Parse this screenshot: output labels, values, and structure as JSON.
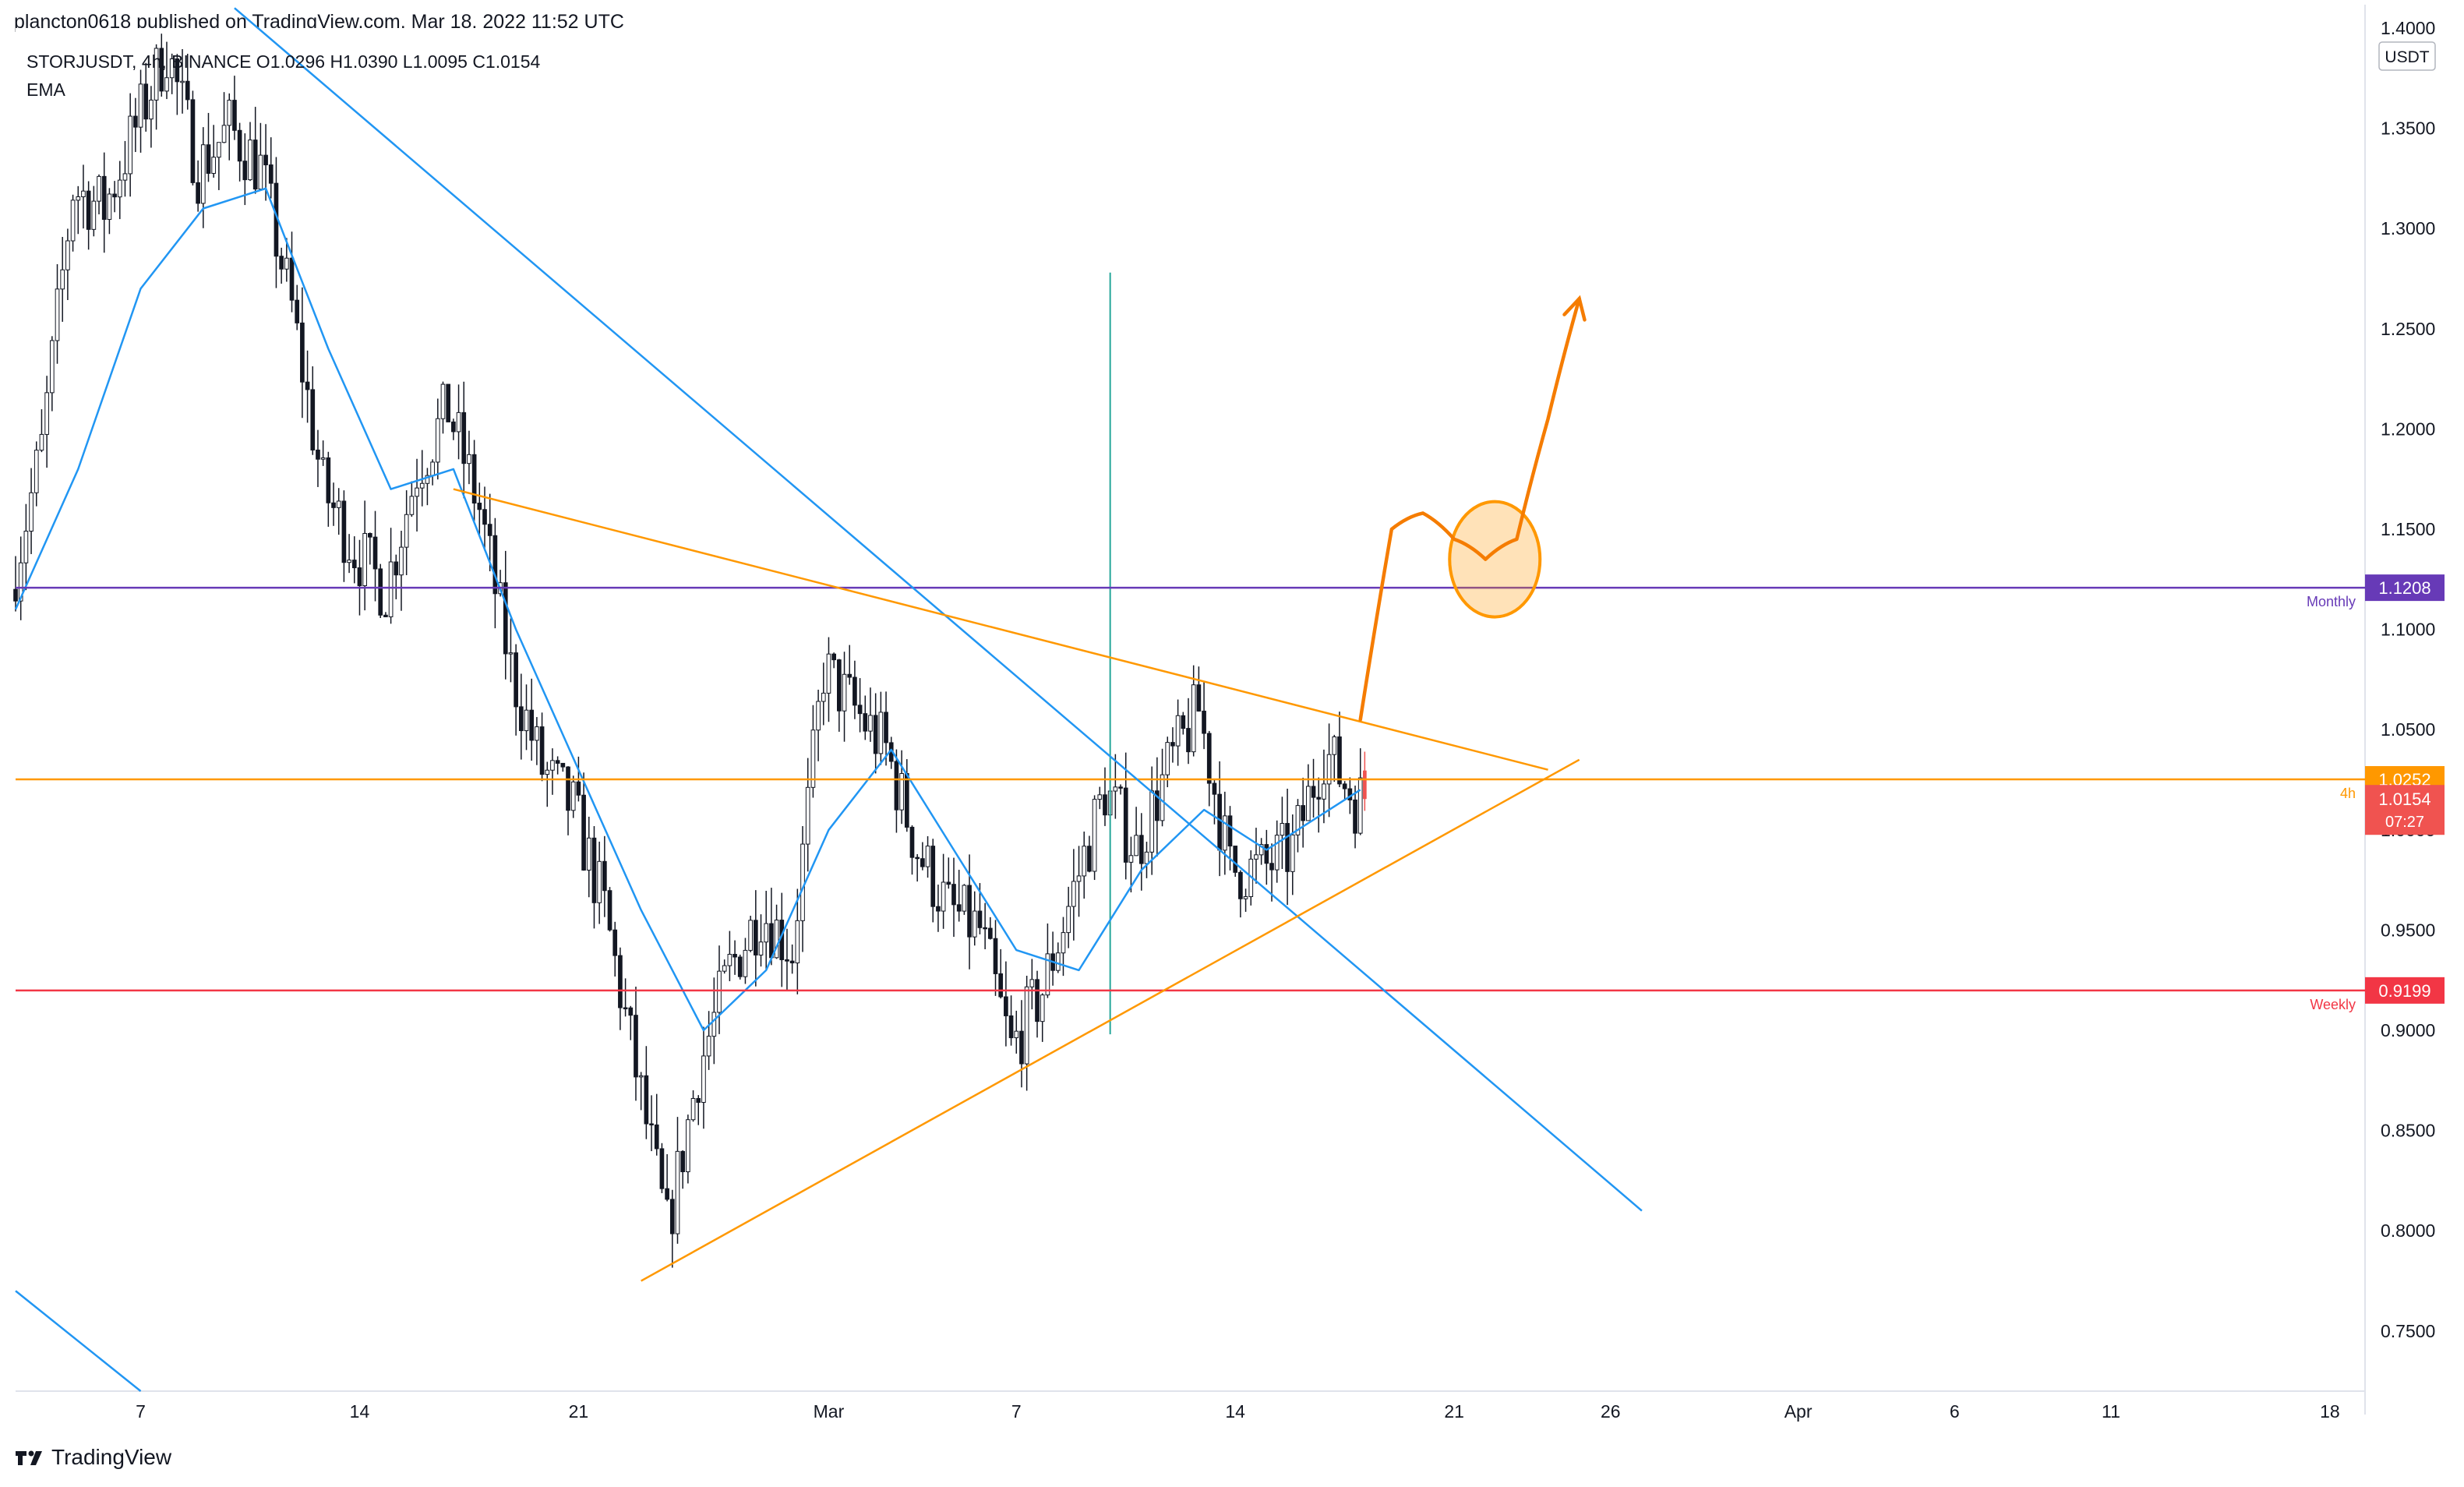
{
  "header": {
    "published": "plancton0618 published on TradingView.com, Mar 18, 2022 11:52 UTC"
  },
  "legend": {
    "symbol_line": "STORJUSDT, 4h, BINANCE  O1.0296  H1.0390  L1.0095  C1.0154",
    "indicator": "EMA"
  },
  "footer": {
    "brand": "TradingView"
  },
  "chart_data": {
    "type": "candlestick",
    "symbol": "STORJUSDT",
    "interval": "4h",
    "exchange": "BINANCE",
    "ohlc_last": {
      "open": 1.0296,
      "high": 1.039,
      "low": 1.0095,
      "close": 1.0154
    },
    "currency": "USDT",
    "y_axis": {
      "min": 0.72,
      "max": 1.4,
      "ticks": [
        "1.4000",
        "1.3500",
        "1.3000",
        "1.2500",
        "1.2000",
        "1.1500",
        "1.1000",
        "1.0500",
        "1.0000",
        "0.9500",
        "0.9000",
        "0.8500",
        "0.8000",
        "0.7500"
      ],
      "tick_values": [
        1.4,
        1.35,
        1.3,
        1.25,
        1.2,
        1.15,
        1.1,
        1.05,
        1.0,
        0.95,
        0.9,
        0.85,
        0.8,
        0.75
      ]
    },
    "x_axis": {
      "start": "2022-02-03",
      "end": "2022-04-19",
      "ticks": [
        {
          "label": "7",
          "date": "2022-02-07"
        },
        {
          "label": "14",
          "date": "2022-02-14"
        },
        {
          "label": "21",
          "date": "2022-02-21"
        },
        {
          "label": "Mar",
          "date": "2022-03-01"
        },
        {
          "label": "7",
          "date": "2022-03-07"
        },
        {
          "label": "14",
          "date": "2022-03-14"
        },
        {
          "label": "21",
          "date": "2022-03-21"
        },
        {
          "label": "26",
          "date": "2022-03-26"
        },
        {
          "label": "Apr",
          "date": "2022-04-01"
        },
        {
          "label": "6",
          "date": "2022-04-06"
        },
        {
          "label": "11",
          "date": "2022-04-11"
        },
        {
          "label": "18",
          "date": "2022-04-18"
        }
      ]
    },
    "close_series": [
      [
        "2022-02-03",
        1.12
      ],
      [
        "2022-02-04",
        1.19
      ],
      [
        "2022-02-05",
        1.32
      ],
      [
        "2022-02-06",
        1.31
      ],
      [
        "2022-02-07",
        1.35
      ],
      [
        "2022-02-08",
        1.39
      ],
      [
        "2022-02-09",
        1.33
      ],
      [
        "2022-02-10",
        1.35
      ],
      [
        "2022-02-11",
        1.33
      ],
      [
        "2022-02-12",
        1.26
      ],
      [
        "2022-02-13",
        1.17
      ],
      [
        "2022-02-14",
        1.14
      ],
      [
        "2022-02-15",
        1.12
      ],
      [
        "2022-02-16",
        1.18
      ],
      [
        "2022-02-17",
        1.21
      ],
      [
        "2022-02-18",
        1.16
      ],
      [
        "2022-02-19",
        1.08
      ],
      [
        "2022-02-20",
        1.03
      ],
      [
        "2022-02-21",
        1.01
      ],
      [
        "2022-02-22",
        0.96
      ],
      [
        "2022-02-23",
        0.88
      ],
      [
        "2022-02-24",
        0.8
      ],
      [
        "2022-02-25",
        0.88
      ],
      [
        "2022-02-26",
        0.93
      ],
      [
        "2022-02-27",
        0.96
      ],
      [
        "2022-02-28",
        0.94
      ],
      [
        "2022-03-01",
        1.08
      ],
      [
        "2022-03-02",
        1.06
      ],
      [
        "2022-03-03",
        1.04
      ],
      [
        "2022-03-04",
        0.99
      ],
      [
        "2022-03-05",
        0.96
      ],
      [
        "2022-03-06",
        0.95
      ],
      [
        "2022-03-07",
        0.89
      ],
      [
        "2022-03-08",
        0.92
      ],
      [
        "2022-03-09",
        0.97
      ],
      [
        "2022-03-10",
        1.02
      ],
      [
        "2022-03-11",
        0.99
      ],
      [
        "2022-03-12",
        1.03
      ],
      [
        "2022-03-13",
        1.06
      ],
      [
        "2022-03-14",
        0.98
      ],
      [
        "2022-03-15",
        0.98
      ],
      [
        "2022-03-16",
        0.99
      ],
      [
        "2022-03-17",
        1.04
      ],
      [
        "2022-03-18",
        1.0154
      ]
    ],
    "ema_series": [
      [
        "2022-02-03",
        1.11
      ],
      [
        "2022-02-05",
        1.18
      ],
      [
        "2022-02-07",
        1.27
      ],
      [
        "2022-02-09",
        1.31
      ],
      [
        "2022-02-11",
        1.32
      ],
      [
        "2022-02-13",
        1.24
      ],
      [
        "2022-02-15",
        1.17
      ],
      [
        "2022-02-17",
        1.18
      ],
      [
        "2022-02-19",
        1.1
      ],
      [
        "2022-02-21",
        1.03
      ],
      [
        "2022-02-23",
        0.96
      ],
      [
        "2022-02-25",
        0.9
      ],
      [
        "2022-02-27",
        0.93
      ],
      [
        "2022-03-01",
        1.0
      ],
      [
        "2022-03-03",
        1.04
      ],
      [
        "2022-03-05",
        0.99
      ],
      [
        "2022-03-07",
        0.94
      ],
      [
        "2022-03-09",
        0.93
      ],
      [
        "2022-03-11",
        0.98
      ],
      [
        "2022-03-13",
        1.01
      ],
      [
        "2022-03-15",
        0.99
      ],
      [
        "2022-03-17",
        1.01
      ],
      [
        "2022-03-18",
        1.02
      ]
    ],
    "horizontal_levels": [
      {
        "label": "Monthly",
        "value": 1.1208,
        "value_text": "1.1208",
        "color": "#673ab7"
      },
      {
        "label": "4h",
        "value": 1.0252,
        "value_text": "1.0252",
        "color": "#ff9800"
      },
      {
        "label": "Weekly",
        "value": 0.9199,
        "value_text": "0.9199",
        "color": "#f23645"
      }
    ],
    "price_tag": {
      "value_text": "1.0154",
      "countdown": "07:27",
      "color": "#f05350"
    },
    "trendlines": [
      {
        "color": "#2196f3",
        "from": [
          "2022-02-10",
          1.41
        ],
        "to": [
          "2022-03-27",
          0.81
        ]
      },
      {
        "color": "#2196f3",
        "from": [
          "2022-02-03",
          0.77
        ],
        "to": [
          "2022-02-07",
          0.72
        ]
      },
      {
        "color": "#ff9800",
        "from": [
          "2022-02-17",
          1.17
        ],
        "to": [
          "2022-03-24",
          1.03
        ]
      },
      {
        "color": "#ff9800",
        "from": [
          "2022-02-23",
          0.775
        ],
        "to": [
          "2022-03-25",
          1.035
        ]
      }
    ],
    "spike_line": {
      "date": "2022-03-10",
      "from": 0.898,
      "to": 1.278,
      "color": "#26a69a"
    },
    "projection_path": [
      [
        "2022-03-18",
        1.055
      ],
      [
        "2022-03-19",
        1.15
      ],
      [
        "2022-03-20",
        1.158
      ],
      [
        "2022-03-21",
        1.145
      ],
      [
        "2022-03-22",
        1.135
      ],
      [
        "2022-03-23",
        1.145
      ],
      [
        "2022-03-24",
        1.205
      ],
      [
        "2022-03-25",
        1.265
      ]
    ],
    "target_circle": {
      "date": "2022-03-22",
      "value": 1.135,
      "color": "#ff9800"
    },
    "colors": {
      "up": "#26a69a",
      "down": "#ef5350",
      "candle": "#131722",
      "ema": "#2196f3",
      "projection": "#f57c00"
    }
  }
}
